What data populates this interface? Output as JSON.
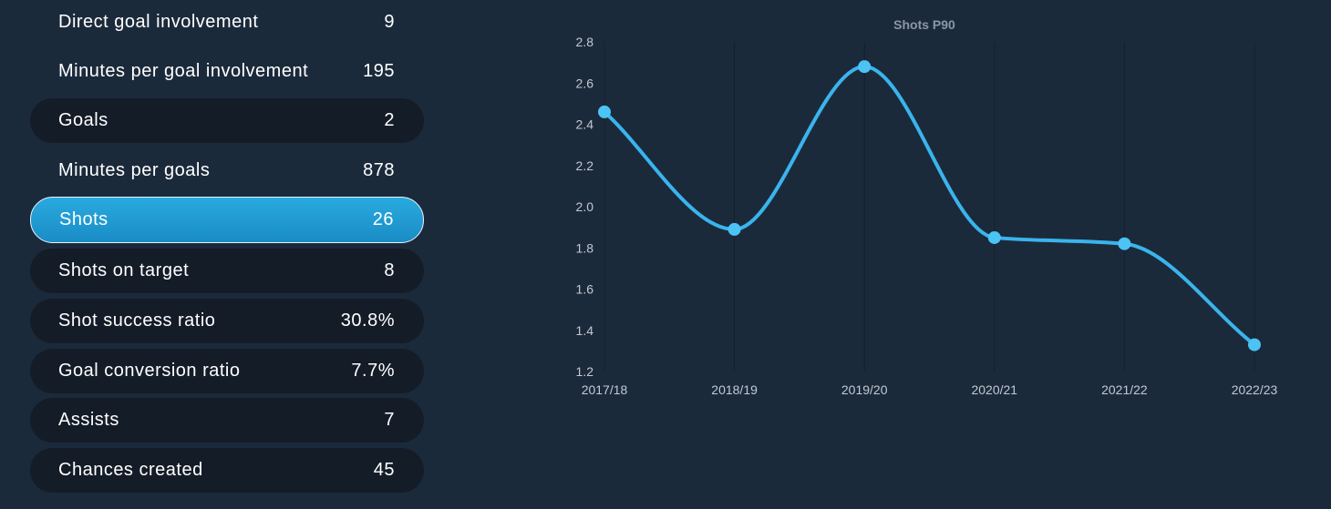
{
  "stats": [
    {
      "label": "Direct goal involvement",
      "value": "9",
      "style": "plain"
    },
    {
      "label": "Minutes per goal involvement",
      "value": "195",
      "style": "plain"
    },
    {
      "label": "Goals",
      "value": "2",
      "style": "pill"
    },
    {
      "label": "Minutes per goals",
      "value": "878",
      "style": "plain"
    },
    {
      "label": "Shots",
      "value": "26",
      "style": "selected"
    },
    {
      "label": "Shots on target",
      "value": "8",
      "style": "pill"
    },
    {
      "label": "Shot success ratio",
      "value": "30.8%",
      "style": "pill"
    },
    {
      "label": "Goal conversion ratio",
      "value": "7.7%",
      "style": "pill"
    },
    {
      "label": "Assists",
      "value": "7",
      "style": "pill"
    },
    {
      "label": "Chances created",
      "value": "45",
      "style": "pill"
    }
  ],
  "colors": {
    "background": "#1b2a3b",
    "pill": "#141c28",
    "selected": "#29aadf",
    "line": "#3ab4ec",
    "point": "#4cc3f5"
  },
  "chart_data": {
    "type": "line",
    "title": "Shots P90",
    "xlabel": "",
    "ylabel": "",
    "categories": [
      "2017/18",
      "2018/19",
      "2019/20",
      "2020/21",
      "2021/22",
      "2022/23"
    ],
    "series": [
      {
        "values": [
          2.46,
          1.89,
          2.68,
          1.85,
          1.82,
          1.33
        ]
      }
    ],
    "ylim": [
      1.2,
      2.8
    ],
    "yticks": [
      "1.2",
      "1.4",
      "1.6",
      "1.8",
      "2.0",
      "2.2",
      "2.4",
      "2.6",
      "2.8"
    ],
    "grid": "vertical",
    "legend": "none",
    "smooth": true
  }
}
